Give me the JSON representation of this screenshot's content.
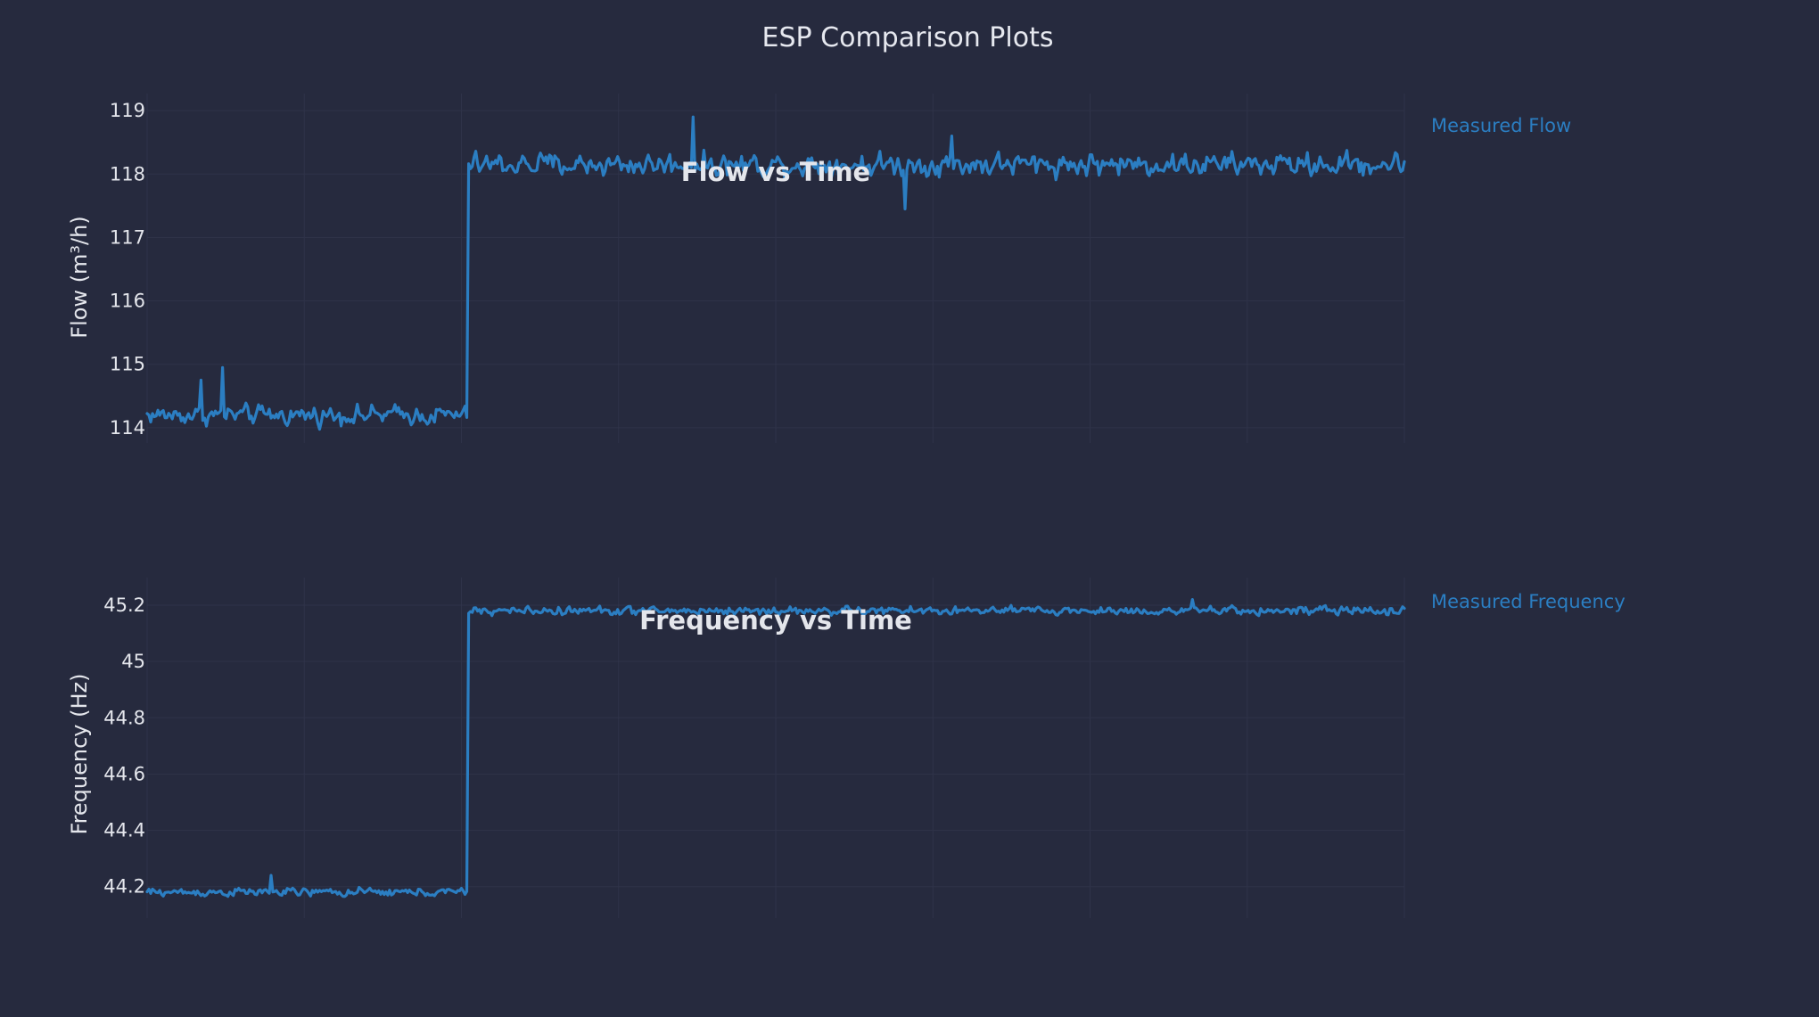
{
  "figure": {
    "title": "ESP Comparison Plots"
  },
  "colors": {
    "background": "#262a3e",
    "series": "#2b7ec2",
    "text": "#e4e6ec"
  },
  "chart_data": [
    {
      "type": "line",
      "title": "Flow vs Time",
      "xlabel": "",
      "ylabel": "Flow (m³/h)",
      "ylim": [
        113.9,
        119.1
      ],
      "yticks": [
        114,
        115,
        116,
        117,
        118,
        119
      ],
      "ytick_labels": [
        "114",
        "115",
        "116",
        "117",
        "118",
        "119"
      ],
      "grid": true,
      "legend": "right",
      "series": [
        {
          "name": "Measured Flow",
          "color": "#2b7ec2",
          "x_range": [
            0,
            100
          ],
          "step": {
            "at": 25.5,
            "before": 114.2,
            "after": 118.15
          },
          "noise_before": 0.13,
          "noise_after": 0.16,
          "spikes": [
            {
              "x": 4.3,
              "y": 114.75
            },
            {
              "x": 6.0,
              "y": 114.95
            },
            {
              "x": 43.4,
              "y": 118.9
            },
            {
              "x": 60.3,
              "y": 117.45
            },
            {
              "x": 64.0,
              "y": 118.6
            }
          ]
        }
      ]
    },
    {
      "type": "line",
      "title": "Frequency vs Time",
      "xlabel": "",
      "ylabel": "Frequency (Hz)",
      "ylim": [
        44.12,
        45.26
      ],
      "yticks": [
        44.2,
        44.4,
        44.6,
        44.8,
        45.0,
        45.2
      ],
      "ytick_labels": [
        "44.2",
        "44.4",
        "44.6",
        "44.8",
        "45",
        "45.2"
      ],
      "grid": true,
      "legend": "right",
      "series": [
        {
          "name": "Measured Frequency",
          "color": "#2b7ec2",
          "x_range": [
            0,
            100
          ],
          "step": {
            "at": 25.5,
            "before": 44.18,
            "after": 45.18
          },
          "noise_before": 0.013,
          "noise_after": 0.013,
          "spikes": [
            {
              "x": 9.9,
              "y": 44.24
            },
            {
              "x": 83.1,
              "y": 45.22
            }
          ]
        }
      ]
    }
  ]
}
